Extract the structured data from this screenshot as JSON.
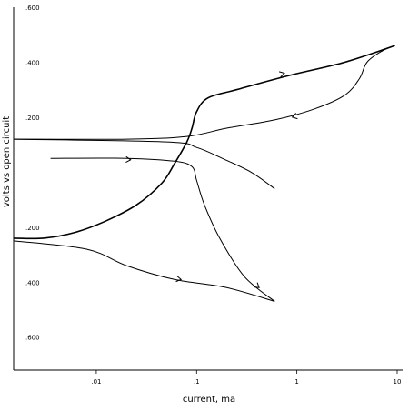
{
  "chart_data": {
    "type": "line",
    "xlabel": "current, ma",
    "ylabel": "volts vs open circuit",
    "x_scale": "log",
    "xlim": [
      0.0015,
      10
    ],
    "ylim": [
      -0.72,
      0.6
    ],
    "x_ticks": [
      {
        "value": 0.01,
        "label": ".01"
      },
      {
        "value": 0.1,
        "label": ".1"
      },
      {
        "value": 1,
        "label": "1"
      },
      {
        "value": 10,
        "label": "10"
      }
    ],
    "y_ticks": [
      {
        "value": 0.6,
        "label": ".600"
      },
      {
        "value": 0.4,
        "label": ".400"
      },
      {
        "value": 0.2,
        "label": ".200"
      },
      {
        "value": -0.2,
        "label": ".200"
      },
      {
        "value": -0.4,
        "label": ".400"
      },
      {
        "value": -0.6,
        "label": ".600"
      }
    ],
    "grid": false,
    "legend": "none",
    "series": [
      {
        "style": "heavy",
        "points": [
          [
            0.0015,
            -0.24
          ],
          [
            0.003,
            -0.24
          ],
          [
            0.006,
            -0.22
          ],
          [
            0.012,
            -0.18
          ],
          [
            0.025,
            -0.12
          ],
          [
            0.045,
            -0.04
          ],
          [
            0.06,
            0.03
          ],
          [
            0.08,
            0.11
          ],
          [
            0.09,
            0.16
          ],
          [
            0.1,
            0.22
          ],
          [
            0.13,
            0.27
          ],
          [
            0.25,
            0.3
          ],
          [
            0.8,
            0.35
          ],
          [
            3,
            0.4
          ],
          [
            9.5,
            0.46
          ]
        ],
        "arrows": [
          {
            "x": 0.75,
            "y": 0.36
          }
        ]
      },
      {
        "points": [
          [
            9.5,
            0.46
          ],
          [
            7,
            0.44
          ],
          [
            5,
            0.4
          ],
          [
            4.2,
            0.34
          ],
          [
            3,
            0.28
          ],
          [
            1.5,
            0.23
          ],
          [
            0.6,
            0.19
          ],
          [
            0.2,
            0.16
          ],
          [
            0.08,
            0.13
          ],
          [
            0.02,
            0.12
          ],
          [
            0.0015,
            0.12
          ]
        ],
        "arrows": [
          {
            "x": 0.9,
            "y": 0.2
          }
        ]
      },
      {
        "points": [
          [
            0.0015,
            0.12
          ],
          [
            0.05,
            0.11
          ],
          [
            0.1,
            0.09
          ],
          [
            0.18,
            0.05
          ],
          [
            0.35,
            0.0
          ],
          [
            0.6,
            -0.06
          ]
        ]
      },
      {
        "points": [
          [
            0.0035,
            0.05
          ],
          [
            0.02,
            0.05
          ],
          [
            0.06,
            0.04
          ],
          [
            0.09,
            0.02
          ],
          [
            0.1,
            -0.03
          ],
          [
            0.12,
            -0.12
          ],
          [
            0.17,
            -0.24
          ],
          [
            0.3,
            -0.38
          ],
          [
            0.6,
            -0.47
          ]
        ],
        "arrows": [
          {
            "x": 0.022,
            "y": 0.045
          },
          {
            "x": 0.42,
            "y": -0.42
          }
        ]
      },
      {
        "points": [
          [
            0.0015,
            -0.25
          ],
          [
            0.008,
            -0.28
          ],
          [
            0.02,
            -0.34
          ],
          [
            0.06,
            -0.39
          ],
          [
            0.2,
            -0.42
          ],
          [
            0.6,
            -0.47
          ]
        ],
        "arrows": [
          {
            "x": 0.07,
            "y": -0.39
          }
        ]
      }
    ]
  }
}
